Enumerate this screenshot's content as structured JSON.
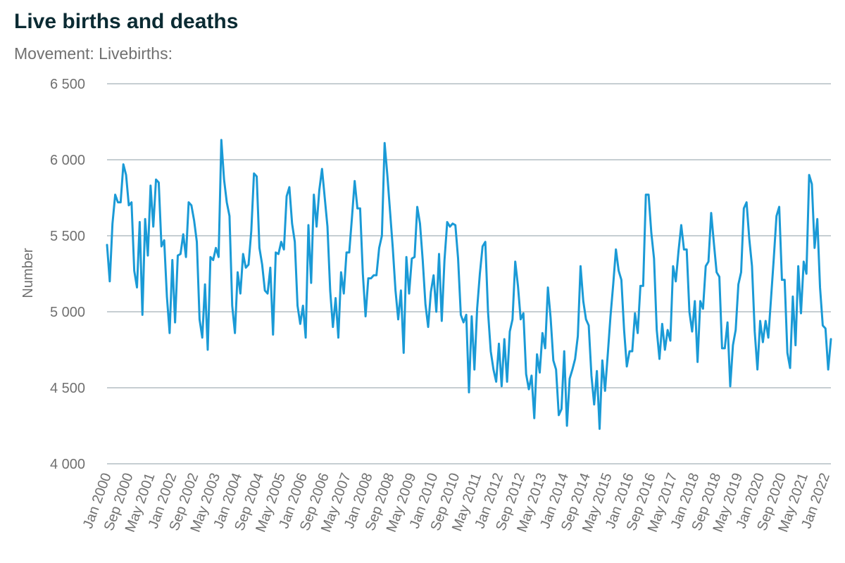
{
  "chart_data": {
    "type": "line",
    "title": "Live births and deaths",
    "subtitle": "Movement: Livebirths:",
    "xlabel": "",
    "ylabel": "Number",
    "ylim": [
      4000,
      6500
    ],
    "yticks": [
      4000,
      4500,
      5000,
      5500,
      6000,
      6500
    ],
    "ytick_labels": [
      "4 000",
      "4 500",
      "5 000",
      "5 500",
      "6 000",
      "6 500"
    ],
    "xtick_labels": [
      "Jan 2000",
      "Sep 2000",
      "May 2001",
      "Jan 2002",
      "Sep 2002",
      "May 2003",
      "Jan 2004",
      "Sep 2004",
      "May 2005",
      "Jan 2006",
      "Sep 2006",
      "May 2007",
      "Jan 2008",
      "Sep 2008",
      "May 2009",
      "Jan 2010",
      "Sep 2010",
      "May 2011",
      "Jan 2012",
      "Sep 2012",
      "May 2013",
      "Jan 2014",
      "Sep 2014",
      "May 2015",
      "Jan 2016",
      "Sep 2016",
      "May 2017",
      "Jan 2018",
      "Sep 2018",
      "May 2019",
      "Jan 2020",
      "Sep 2020",
      "May 2021",
      "Jan 2022"
    ],
    "x_start": "Jan 2000",
    "x_end": "Apr 2022",
    "grid": true,
    "legend": "none",
    "color": "#1a9ad6",
    "series": [
      {
        "values": [
          5440,
          5200,
          5580,
          5770,
          5720,
          5720,
          5970,
          5900,
          5700,
          5720,
          5270,
          5160,
          5590,
          4980,
          5610,
          5370,
          5830,
          5560,
          5870,
          5850,
          5430,
          5470,
          5100,
          4860,
          5340,
          4930,
          5370,
          5380,
          5510,
          5360,
          5720,
          5700,
          5600,
          5460,
          4950,
          4830,
          5180,
          4750,
          5360,
          5340,
          5420,
          5360,
          6130,
          5870,
          5720,
          5630,
          5040,
          4860,
          5260,
          5120,
          5380,
          5290,
          5310,
          5530,
          5910,
          5890,
          5420,
          5310,
          5140,
          5120,
          5290,
          4850,
          5390,
          5380,
          5460,
          5410,
          5760,
          5820,
          5580,
          5460,
          5040,
          4920,
          5040,
          4830,
          5570,
          5190,
          5770,
          5560,
          5800,
          5940,
          5750,
          5560,
          5140,
          4900,
          5090,
          4830,
          5260,
          5120,
          5390,
          5390,
          5620,
          5860,
          5680,
          5680,
          5250,
          4970,
          5220,
          5220,
          5240,
          5240,
          5420,
          5500,
          6110,
          5900,
          5660,
          5420,
          5140,
          4950,
          5140,
          4730,
          5360,
          5120,
          5350,
          5360,
          5690,
          5580,
          5340,
          5050,
          4900,
          5130,
          5240,
          5000,
          5380,
          4940,
          5340,
          5590,
          5560,
          5580,
          5570,
          5350,
          4980,
          4930,
          4980,
          4470,
          4970,
          4620,
          5020,
          5250,
          5430,
          5460,
          5000,
          4740,
          4620,
          4540,
          4790,
          4510,
          4820,
          4540,
          4870,
          4950,
          5330,
          5170,
          4950,
          4990,
          4590,
          4490,
          4580,
          4300,
          4720,
          4600,
          4860,
          4760,
          5160,
          4960,
          4680,
          4620,
          4320,
          4360,
          4740,
          4250,
          4560,
          4620,
          4690,
          4840,
          5300,
          5070,
          4950,
          4910,
          4580,
          4390,
          4610,
          4230,
          4680,
          4480,
          4720,
          4970,
          5180,
          5410,
          5270,
          5210,
          4880,
          4640,
          4740,
          4740,
          4990,
          4860,
          5170,
          5170,
          5770,
          5770,
          5520,
          5350,
          4880,
          4690,
          4920,
          4750,
          4880,
          4810,
          5300,
          5200,
          5400,
          5570,
          5410,
          5410,
          5000,
          4870,
          5070,
          4670,
          5070,
          5020,
          5300,
          5330,
          5650,
          5450,
          5260,
          5230,
          4760,
          4760,
          4930,
          4510,
          4780,
          4880,
          5180,
          5260,
          5680,
          5720,
          5480,
          5300,
          4870,
          4620,
          4940,
          4800,
          4940,
          4830,
          5090,
          5350,
          5630,
          5690,
          5210,
          5210,
          4730,
          4630,
          5100,
          4780,
          5300,
          4990,
          5330,
          5250,
          5900,
          5840,
          5420,
          5610,
          5160,
          4910,
          4890,
          4620,
          4820
        ]
      }
    ]
  }
}
